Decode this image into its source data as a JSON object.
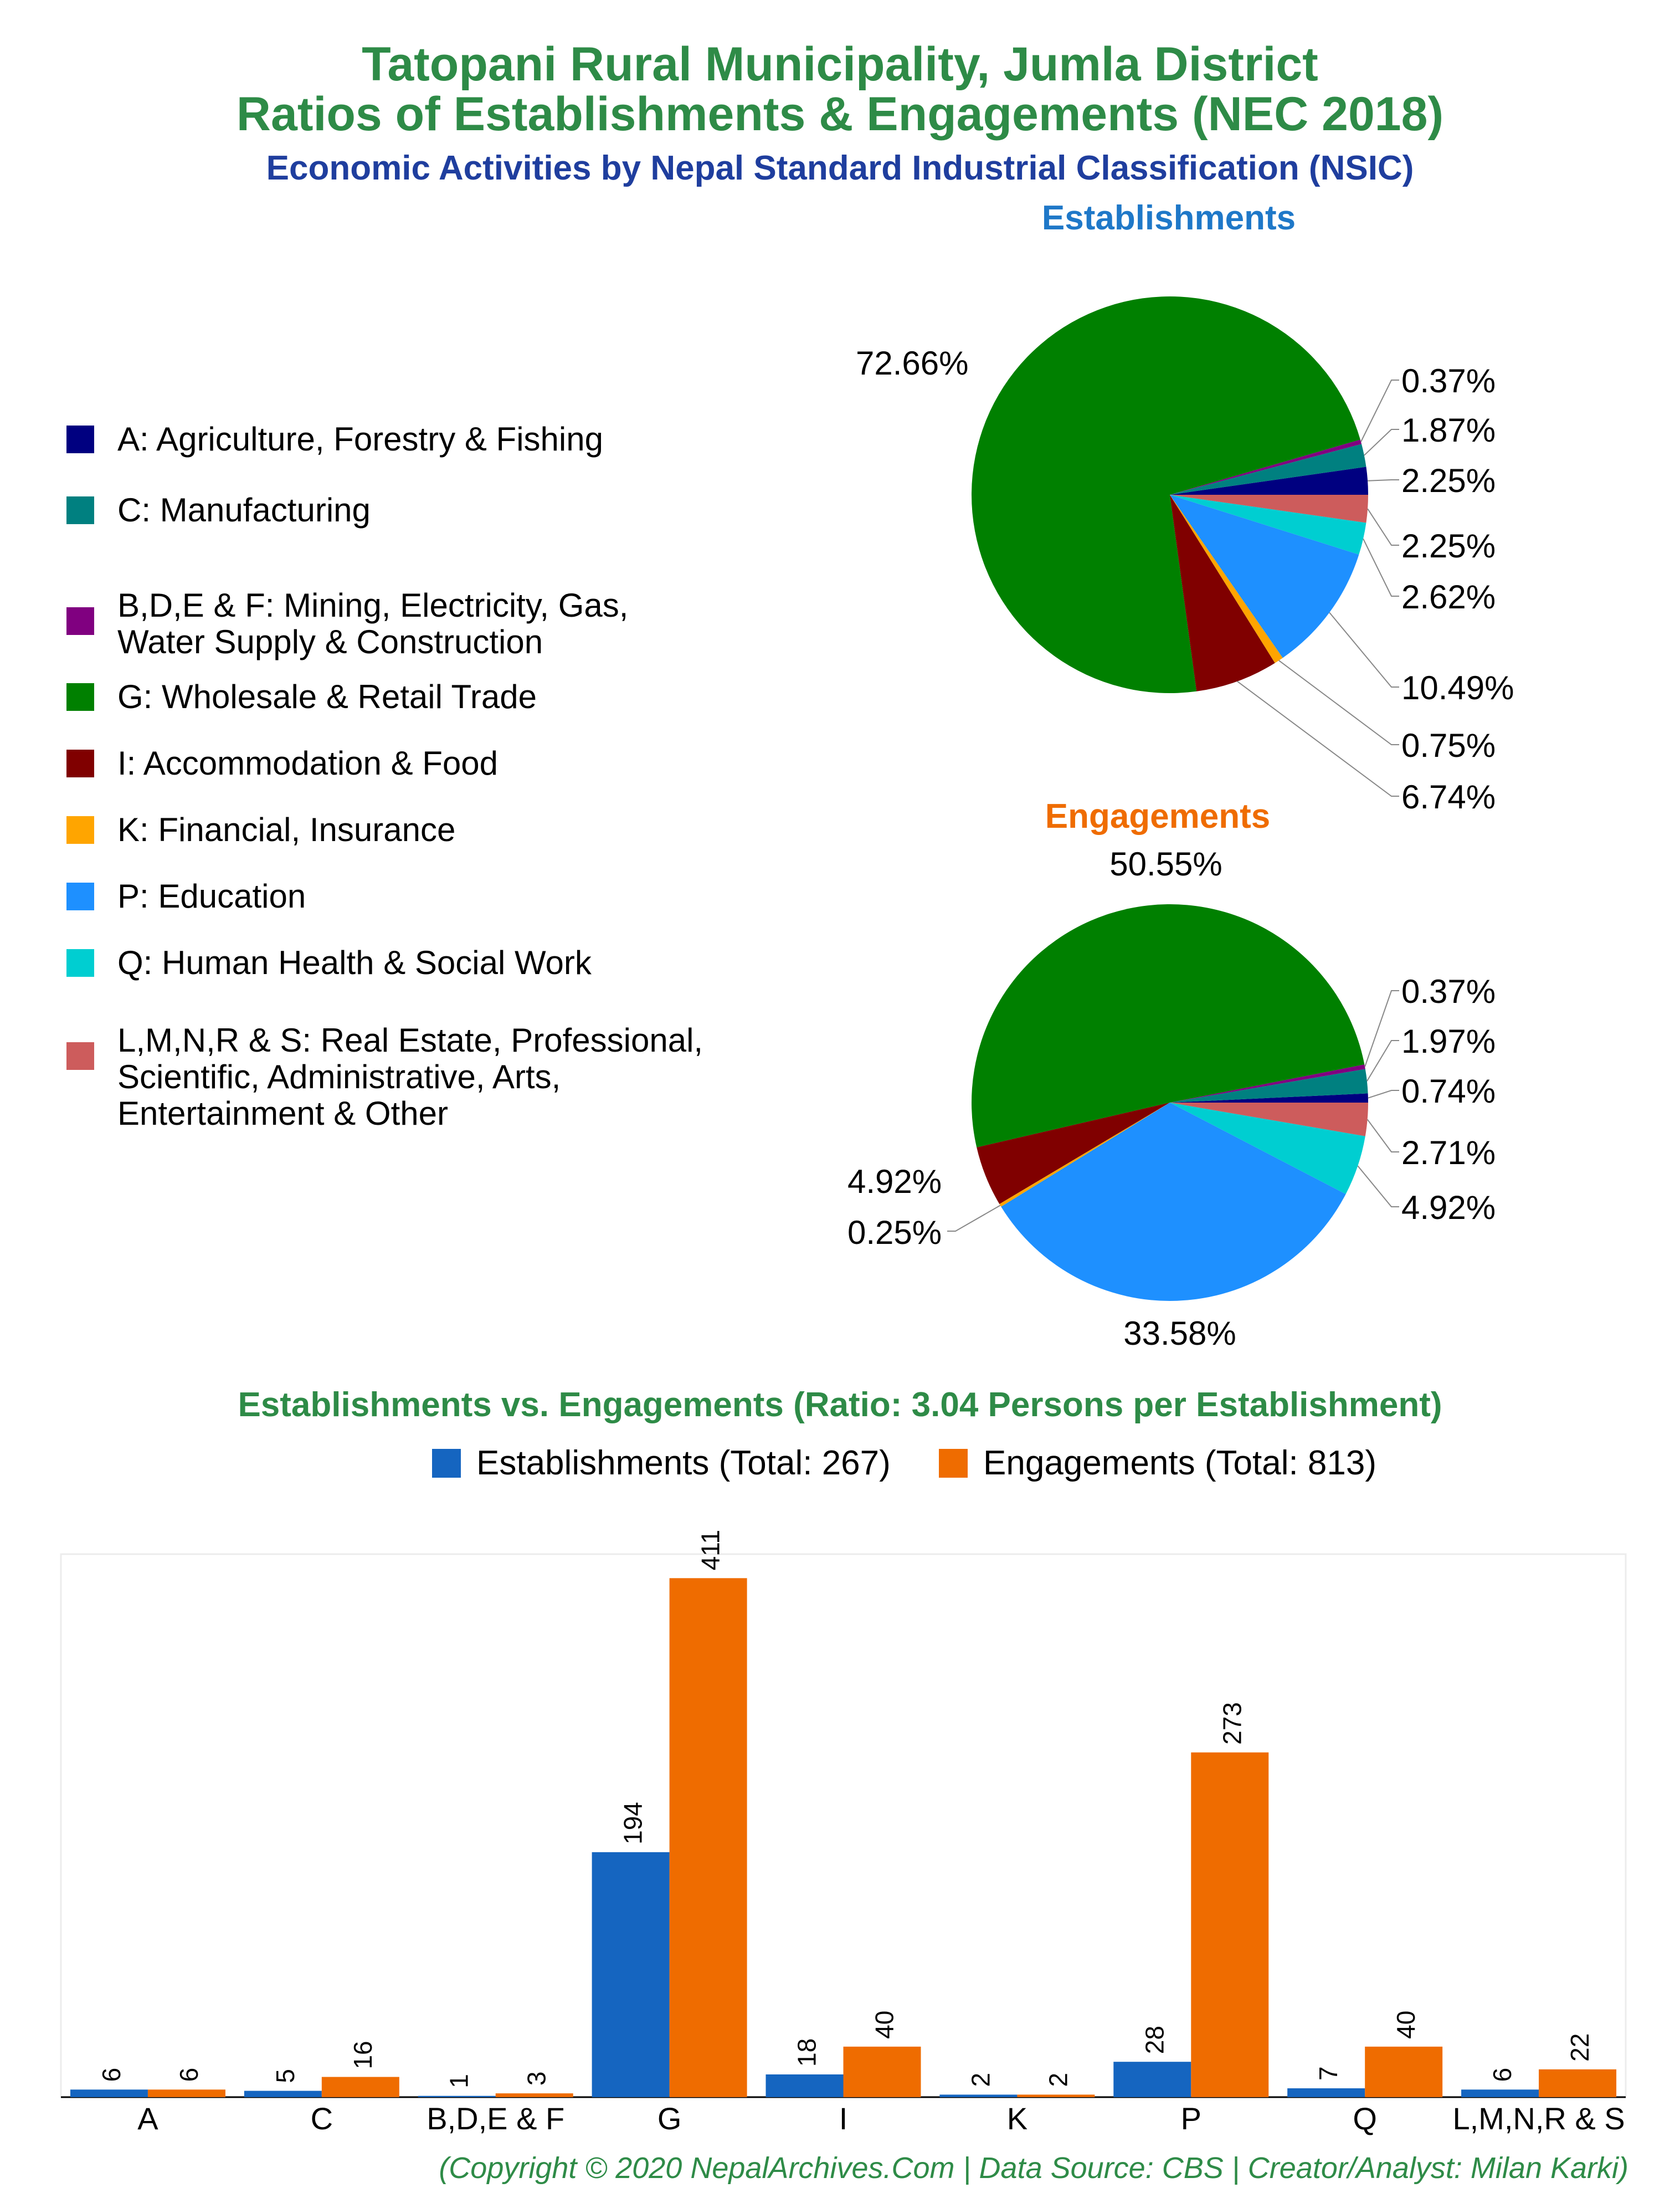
{
  "titles": {
    "line1": "Tatopani Rural Municipality, Jumla District",
    "line2": "Ratios of Establishments & Engagements (NEC 2018)",
    "line3": "Economic Activities by Nepal Standard Industrial Classification (NSIC)"
  },
  "colors": {
    "A": "#000080",
    "C": "#008080",
    "BDEF": "#800080",
    "G": "#008000",
    "I": "#800000",
    "K": "#FFA500",
    "P": "#1E90FF",
    "Q": "#00CED1",
    "LMNRS": "#CD5C5C",
    "est_bar": "#1565C0",
    "eng_bar": "#EF6C00",
    "est_title": "#1f78c8",
    "eng_title": "#ef6c00"
  },
  "legend": [
    {
      "key": "A",
      "label": "A: Agriculture, Forestry & Fishing"
    },
    {
      "key": "C",
      "label": "C: Manufacturing"
    },
    {
      "key": "BDEF",
      "label": "B,D,E & F: Mining, Electricity, Gas,\nWater Supply & Construction"
    },
    {
      "key": "G",
      "label": "G: Wholesale & Retail Trade"
    },
    {
      "key": "I",
      "label": "I: Accommodation & Food"
    },
    {
      "key": "K",
      "label": "K: Financial, Insurance"
    },
    {
      "key": "P",
      "label": "P: Education"
    },
    {
      "key": "Q",
      "label": "Q: Human Health & Social Work"
    },
    {
      "key": "LMNRS",
      "label": "L,M,N,R & S: Real Estate, Professional,\nScientific, Administrative, Arts,\nEntertainment & Other"
    }
  ],
  "chart_data": [
    {
      "type": "pie",
      "title": "Establishments",
      "slices": [
        {
          "key": "A",
          "value": 2.25,
          "label": "2.25%"
        },
        {
          "key": "C",
          "value": 1.87,
          "label": "1.87%"
        },
        {
          "key": "BDEF",
          "value": 0.37,
          "label": "0.37%"
        },
        {
          "key": "G",
          "value": 72.66,
          "label": "72.66%"
        },
        {
          "key": "I",
          "value": 6.74,
          "label": "6.74%"
        },
        {
          "key": "K",
          "value": 0.75,
          "label": "0.75%"
        },
        {
          "key": "P",
          "value": 10.49,
          "label": "10.49%"
        },
        {
          "key": "Q",
          "value": 2.62,
          "label": "2.62%"
        },
        {
          "key": "LMNRS",
          "value": 2.25,
          "label": "2.25%"
        }
      ]
    },
    {
      "type": "pie",
      "title": "Engagements",
      "slices": [
        {
          "key": "A",
          "value": 0.74,
          "label": "0.74%"
        },
        {
          "key": "C",
          "value": 1.97,
          "label": "1.97%"
        },
        {
          "key": "BDEF",
          "value": 0.37,
          "label": "0.37%"
        },
        {
          "key": "G",
          "value": 50.55,
          "label": "50.55%"
        },
        {
          "key": "I",
          "value": 4.92,
          "label": "4.92%"
        },
        {
          "key": "K",
          "value": 0.25,
          "label": "0.25%"
        },
        {
          "key": "P",
          "value": 33.58,
          "label": "33.58%"
        },
        {
          "key": "Q",
          "value": 4.92,
          "label": "4.92%"
        },
        {
          "key": "LMNRS",
          "value": 2.71,
          "label": "2.71%"
        }
      ]
    },
    {
      "type": "bar",
      "title": "Establishments vs. Engagements (Ratio: 3.04 Persons per Establishment)",
      "categories": [
        "A",
        "C",
        "B,D,E & F",
        "G",
        "I",
        "K",
        "P",
        "Q",
        "L,M,N,R & S"
      ],
      "series": [
        {
          "name": "Establishments (Total: 267)",
          "values": [
            6,
            5,
            1,
            194,
            18,
            2,
            28,
            7,
            6
          ]
        },
        {
          "name": "Engagements (Total: 813)",
          "values": [
            6,
            16,
            3,
            411,
            40,
            2,
            273,
            40,
            22
          ]
        }
      ],
      "ylim": [
        0,
        430
      ],
      "legend": "top",
      "grid": false
    }
  ],
  "footer": "(Copyright © 2020 NepalArchives.Com | Data Source: CBS | Creator/Analyst: Milan Karki)"
}
